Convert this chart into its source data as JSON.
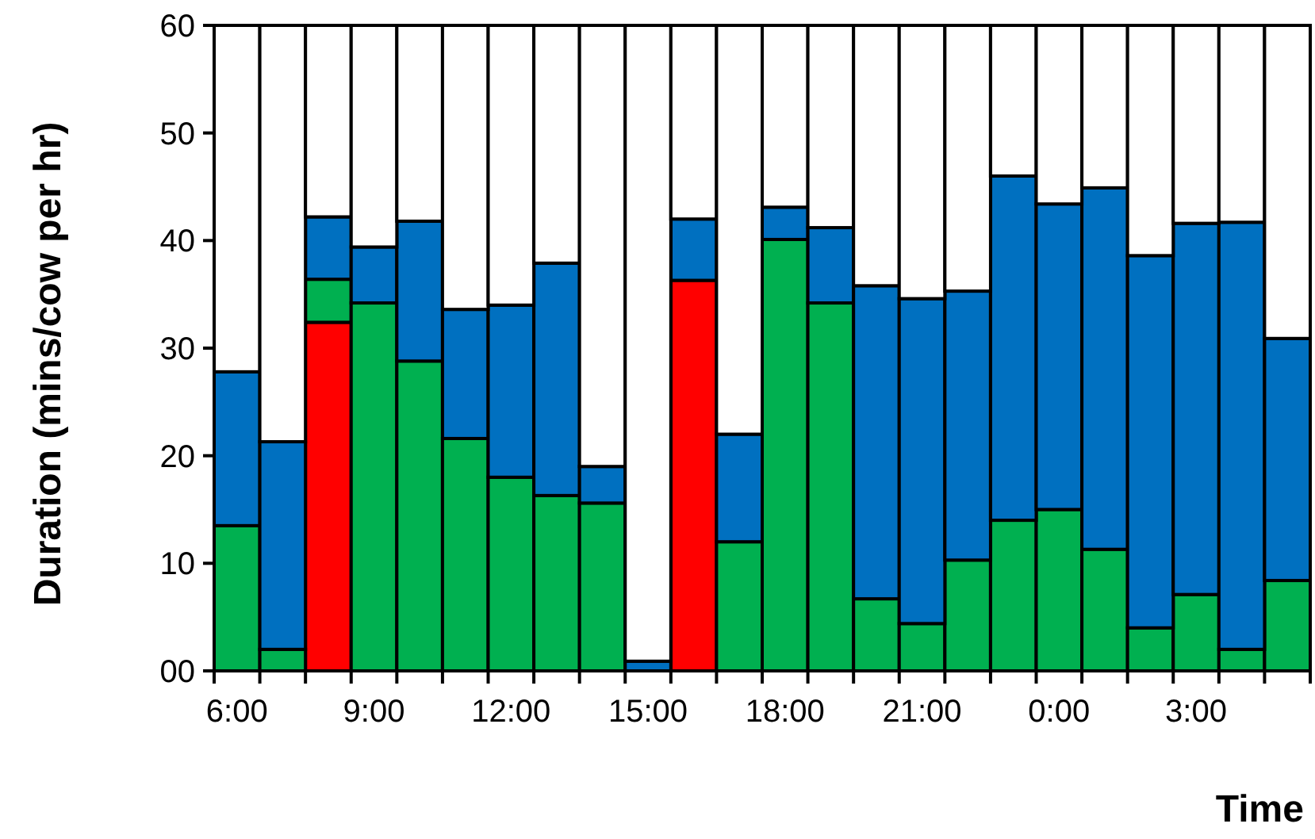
{
  "chart_data": {
    "type": "bar",
    "stacked": true,
    "xlabel": "Time",
    "ylabel": "Duration (mins/cow per hr)",
    "categories": [
      "6:00",
      null,
      null,
      "9:00",
      null,
      null,
      "12:00",
      null,
      null,
      "15:00",
      null,
      null,
      "18:00",
      null,
      null,
      "21:00",
      null,
      null,
      "0:00",
      null,
      null,
      "3:00",
      null,
      null
    ],
    "series": [
      {
        "color": "#ff0000",
        "values": [
          0,
          0,
          32.4,
          0,
          0,
          0,
          0,
          0,
          0,
          0,
          36.3,
          0,
          0,
          0,
          0,
          0,
          0,
          0,
          0,
          0,
          0,
          0,
          0,
          0
        ]
      },
      {
        "color": "#00b050",
        "values": [
          13.5,
          2,
          4,
          34.2,
          28.8,
          21.6,
          18,
          16.3,
          15.6,
          null,
          0,
          12,
          40.1,
          34.2,
          6.7,
          4.4,
          10.3,
          14,
          15,
          11.3,
          4,
          7.1,
          2,
          8.4
        ]
      },
      {
        "color": "#0070c0",
        "values": [
          14.3,
          19.3,
          5.8,
          5.2,
          13,
          12,
          16,
          21.6,
          3.4,
          0.9,
          5.7,
          10,
          3,
          7,
          29.1,
          30.2,
          25,
          32,
          28.4,
          33.6,
          34.6,
          34.5,
          39.7,
          22.5
        ]
      },
      {
        "color": "#ffffff",
        "values": [
          32.2,
          38.7,
          17.8,
          20.6,
          18.2,
          26.4,
          26,
          22.1,
          41,
          59.1,
          18,
          38,
          16.9,
          18.8,
          24.2,
          25.4,
          24.7,
          14,
          16.6,
          15.1,
          21.4,
          18.4,
          18.3,
          29.1
        ]
      }
    ],
    "ylim": [
      0,
      60
    ],
    "yticks": [
      {
        "value": 0,
        "label": "00"
      },
      10,
      20,
      30,
      40,
      50,
      60
    ]
  }
}
